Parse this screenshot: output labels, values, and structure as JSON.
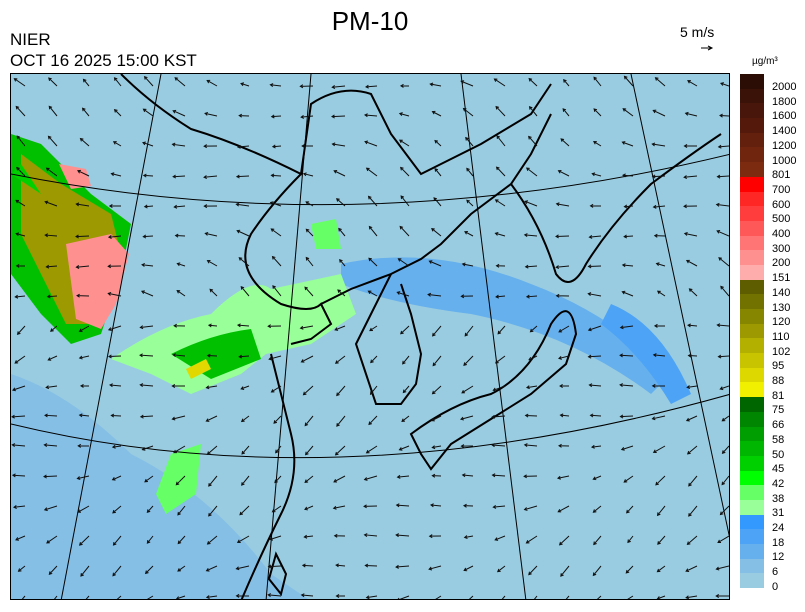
{
  "header": {
    "title": "PM-10",
    "agency": "NIER",
    "datetime": "OCT 16 2025 15:00 KST",
    "wind_reference": "5 m/s"
  },
  "legend": {
    "unit": "µg/m³",
    "labels": [
      "2000",
      "1800",
      "1600",
      "1400",
      "1200",
      "1000",
      "801",
      "700",
      "600",
      "500",
      "400",
      "300",
      "200",
      "151",
      "140",
      "130",
      "120",
      "110",
      "102",
      "95",
      "88",
      "81",
      "75",
      "66",
      "58",
      "50",
      "45",
      "42",
      "38",
      "31",
      "24",
      "18",
      "12",
      "6",
      "0"
    ],
    "colors": [
      "#2b0d06",
      "#3a1208",
      "#48160a",
      "#55190b",
      "#63200d",
      "#6f250e",
      "#7d2b10",
      "#ff0000",
      "#ff2626",
      "#ff3d3d",
      "#ff5858",
      "#ff7474",
      "#ff9090",
      "#ffacac",
      "#5e5e00",
      "#727200",
      "#868600",
      "#9c9a00",
      "#b4b000",
      "#c8c400",
      "#dcd800",
      "#f0f000",
      "#006600",
      "#008600",
      "#009e00",
      "#00b600",
      "#00d000",
      "#00ff00",
      "#66ff66",
      "#99ff99",
      "#3399ff",
      "#4da3f5",
      "#66b0ee",
      "#85bfe6",
      "#99cce0"
    ]
  },
  "map": {
    "background": "#99cce0",
    "coast_color": "#000000"
  }
}
